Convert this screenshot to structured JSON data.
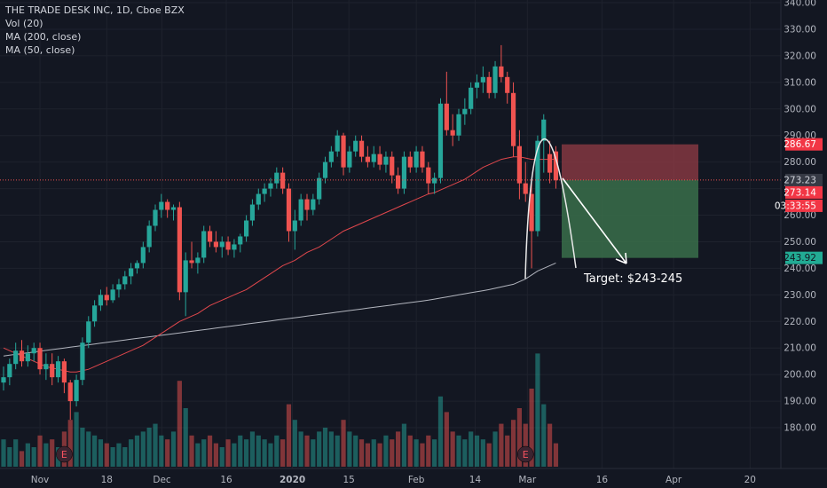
{
  "legend": {
    "symbol": "THE TRADE DESK INC, 1D, Cboe BZX",
    "vol": "Vol (20)",
    "ma200": "MA (200, close)",
    "ma50": "MA (50, close)"
  },
  "colors": {
    "background": "#131722",
    "grid": "#1e222d",
    "up": "#26a69a",
    "down": "#ef5350",
    "ma50": "#e0474c",
    "ma200": "#b2b5be",
    "stop_zone": "#8b3a44",
    "target_zone": "#3a6e4a",
    "current_price_line": "#ef5350"
  },
  "chart_data": {
    "type": "candlestick",
    "y_range": [
      173,
      340
    ],
    "y_ticks": [
      180,
      190,
      200,
      210,
      220,
      230,
      240,
      250,
      260,
      270,
      280,
      290,
      300,
      310,
      320,
      330,
      340
    ],
    "x_labels": [
      "Nov",
      "18",
      "Dec",
      "16",
      "2020",
      "15",
      "Feb",
      "14",
      "Mar",
      "16",
      "Apr",
      "20"
    ],
    "ohlc": [
      [
        197.0,
        203.0,
        194.0,
        199.0
      ],
      [
        199.0,
        206.0,
        196.0,
        204.0
      ],
      [
        204.0,
        212.0,
        202.0,
        209.0
      ],
      [
        209.0,
        213.0,
        203.0,
        205.0
      ],
      [
        205.0,
        211.0,
        203.0,
        208.0
      ],
      [
        208.0,
        212.0,
        205.0,
        210.0
      ],
      [
        210.0,
        212.0,
        200.0,
        202.0
      ],
      [
        202.0,
        208.0,
        198.0,
        204.0
      ],
      [
        204.0,
        208.0,
        196.0,
        199.0
      ],
      [
        199.0,
        207.0,
        197.0,
        205.0
      ],
      [
        205.0,
        206.0,
        193.0,
        197.0
      ],
      [
        197.0,
        198.0,
        183.0,
        190.0
      ],
      [
        190.0,
        200.0,
        188.0,
        198.0
      ],
      [
        198.0,
        214.0,
        196.0,
        212.0
      ],
      [
        212.0,
        222.0,
        210.0,
        220.0
      ],
      [
        220.0,
        228.0,
        218.0,
        226.0
      ],
      [
        226.0,
        232.0,
        224.0,
        230.0
      ],
      [
        230.0,
        233.0,
        226.0,
        228.0
      ],
      [
        228.0,
        234.0,
        227.0,
        232.0
      ],
      [
        232.0,
        236.0,
        229.0,
        234.0
      ],
      [
        234.0,
        239.0,
        232.0,
        237.0
      ],
      [
        237.0,
        242.0,
        234.0,
        240.0
      ],
      [
        240.0,
        243.0,
        238.0,
        242.0
      ],
      [
        242.0,
        250.0,
        240.0,
        248.0
      ],
      [
        248.0,
        258.0,
        246.0,
        256.0
      ],
      [
        256.0,
        264.0,
        254.0,
        262.0
      ],
      [
        262.0,
        268.0,
        259.0,
        265.0
      ],
      [
        265.0,
        266.0,
        259.0,
        262.0
      ],
      [
        262.0,
        264.0,
        258.0,
        263.0
      ],
      [
        263.0,
        265.0,
        228.0,
        231.0
      ],
      [
        231.0,
        246.0,
        222.0,
        243.0
      ],
      [
        243.0,
        250.0,
        240.0,
        242.0
      ],
      [
        242.0,
        246.0,
        238.0,
        244.0
      ],
      [
        244.0,
        256.0,
        242.0,
        254.0
      ],
      [
        254.0,
        256.0,
        248.0,
        250.0
      ],
      [
        250.0,
        254.0,
        246.0,
        248.0
      ],
      [
        248.0,
        252.0,
        244.0,
        250.0
      ],
      [
        250.0,
        252.0,
        245.0,
        247.0
      ],
      [
        247.0,
        251.0,
        244.0,
        249.0
      ],
      [
        249.0,
        253.0,
        246.0,
        252.0
      ],
      [
        252.0,
        260.0,
        250.0,
        258.0
      ],
      [
        258.0,
        266.0,
        256.0,
        264.0
      ],
      [
        264.0,
        270.0,
        262.0,
        268.0
      ],
      [
        268.0,
        272.0,
        265.0,
        270.0
      ],
      [
        270.0,
        274.0,
        267.0,
        272.0
      ],
      [
        272.0,
        278.0,
        270.0,
        276.0
      ],
      [
        276.0,
        278.0,
        268.0,
        270.0
      ],
      [
        270.0,
        272.0,
        250.0,
        254.0
      ],
      [
        254.0,
        262.0,
        247.0,
        258.0
      ],
      [
        258.0,
        268.0,
        256.0,
        266.0
      ],
      [
        266.0,
        268.0,
        258.0,
        262.0
      ],
      [
        262.0,
        268.0,
        260.0,
        266.0
      ],
      [
        266.0,
        276.0,
        264.0,
        274.0
      ],
      [
        274.0,
        282.0,
        272.0,
        280.0
      ],
      [
        280.0,
        286.0,
        278.0,
        284.0
      ],
      [
        284.0,
        292.0,
        282.0,
        290.0
      ],
      [
        290.0,
        291.0,
        275.0,
        278.0
      ],
      [
        278.0,
        286.0,
        276.0,
        284.0
      ],
      [
        284.0,
        290.0,
        282.0,
        288.0
      ],
      [
        288.0,
        290.0,
        280.0,
        282.0
      ],
      [
        282.0,
        286.0,
        278.0,
        280.0
      ],
      [
        280.0,
        286.0,
        278.0,
        283.0
      ],
      [
        283.0,
        286.0,
        277.0,
        279.0
      ],
      [
        279.0,
        284.0,
        276.0,
        282.0
      ],
      [
        282.0,
        284.0,
        272.0,
        275.0
      ],
      [
        275.0,
        278.0,
        268.0,
        270.0
      ],
      [
        270.0,
        284.0,
        268.0,
        282.0
      ],
      [
        282.0,
        284.0,
        276.0,
        278.0
      ],
      [
        278.0,
        286.0,
        276.0,
        284.0
      ],
      [
        284.0,
        286.0,
        276.0,
        278.0
      ],
      [
        278.0,
        280.0,
        268.0,
        272.0
      ],
      [
        272.0,
        276.0,
        268.0,
        274.0
      ],
      [
        274.0,
        304.0,
        272.0,
        302.0
      ],
      [
        302.0,
        314.0,
        290.0,
        292.0
      ],
      [
        292.0,
        298.0,
        286.0,
        290.0
      ],
      [
        290.0,
        300.0,
        288.0,
        298.0
      ],
      [
        298.0,
        304.0,
        294.0,
        300.0
      ],
      [
        300.0,
        310.0,
        298.0,
        308.0
      ],
      [
        308.0,
        313.0,
        304.0,
        310.0
      ],
      [
        310.0,
        316.0,
        306.0,
        312.0
      ],
      [
        312.0,
        314.0,
        304.0,
        306.0
      ],
      [
        306.0,
        318.0,
        304.0,
        316.0
      ],
      [
        316.0,
        324.0,
        310.0,
        312.0
      ],
      [
        312.0,
        314.0,
        302.0,
        306.0
      ],
      [
        306.0,
        310.0,
        282.0,
        286.0
      ],
      [
        286.0,
        292.0,
        266.0,
        272.0
      ],
      [
        272.0,
        280.0,
        265.0,
        268.0
      ],
      [
        268.0,
        272.0,
        240.0,
        254.0
      ],
      [
        254.0,
        290.0,
        252.0,
        288.0
      ],
      [
        288.0,
        298.0,
        276.0,
        296.0
      ],
      [
        283.0,
        288.0,
        272.0,
        276.0
      ],
      [
        284.0,
        286.0,
        270.0,
        273.14
      ]
    ],
    "volume": [
      7.0,
      5.0,
      7.0,
      4.0,
      6.0,
      5.0,
      8.0,
      6.0,
      7.0,
      5.0,
      9.0,
      12.0,
      14.0,
      10.0,
      9.0,
      8.0,
      7.0,
      6.0,
      5.0,
      6.0,
      5.0,
      7.0,
      8.0,
      9.0,
      10.0,
      11.0,
      8.0,
      7.0,
      9.0,
      22.0,
      15.0,
      8.0,
      6.0,
      7.0,
      8.0,
      6.0,
      5.0,
      7.0,
      6.0,
      8.0,
      7.0,
      9.0,
      8.0,
      7.0,
      6.0,
      8.0,
      7.0,
      16.0,
      12.0,
      9.0,
      8.0,
      7.0,
      9.0,
      10.0,
      9.0,
      8.0,
      12.0,
      9.0,
      8.0,
      7.0,
      6.0,
      7.0,
      6.0,
      8.0,
      7.0,
      9.0,
      11.0,
      8.0,
      7.0,
      6.0,
      8.0,
      7.0,
      18.0,
      14.0,
      9.0,
      8.0,
      7.0,
      9.0,
      8.0,
      7.0,
      6.0,
      9.0,
      11.0,
      8.0,
      12.0,
      15.0,
      11.0,
      20.0,
      29.0,
      16.0,
      11.0,
      6.0
    ],
    "ma50": [
      210.0,
      209.0,
      208.0,
      207.0,
      206.0,
      205.0,
      204.0,
      203.0,
      202.5,
      202.0,
      201.5,
      201.0,
      201.0,
      201.5,
      202.0,
      203.0,
      204.0,
      205.0,
      206.0,
      207.0,
      208.0,
      209.0,
      210.0,
      211.0,
      212.5,
      214.0,
      215.5,
      217.0,
      218.5,
      220.0,
      221.0,
      222.0,
      223.0,
      224.5,
      226.0,
      227.0,
      228.0,
      229.0,
      230.0,
      231.0,
      232.0,
      233.5,
      235.0,
      236.5,
      238.0,
      239.5,
      241.0,
      242.0,
      243.0,
      244.5,
      246.0,
      247.0,
      248.0,
      249.5,
      251.0,
      252.5,
      254.0,
      255.0,
      256.0,
      257.0,
      258.0,
      259.0,
      260.0,
      261.0,
      262.0,
      263.0,
      264.0,
      265.0,
      266.0,
      267.0,
      268.0,
      268.5,
      269.5,
      270.5,
      271.5,
      272.5,
      273.5,
      275.0,
      276.5,
      278.0,
      279.0,
      280.0,
      281.0,
      281.5,
      282.0,
      282.0,
      281.5,
      281.0,
      281.0,
      281.0,
      281.0,
      281.0
    ],
    "ma200": [
      207.0,
      207.3,
      207.6,
      207.9,
      208.2,
      208.5,
      208.8,
      209.1,
      209.4,
      209.7,
      210.0,
      210.3,
      210.6,
      210.9,
      211.2,
      211.5,
      211.8,
      212.1,
      212.4,
      212.7,
      213.0,
      213.3,
      213.6,
      213.9,
      214.2,
      214.5,
      214.8,
      215.1,
      215.4,
      215.7,
      216.0,
      216.3,
      216.6,
      216.9,
      217.2,
      217.5,
      217.8,
      218.1,
      218.4,
      218.7,
      219.0,
      219.3,
      219.6,
      219.9,
      220.2,
      220.5,
      220.8,
      221.1,
      221.4,
      221.7,
      222.0,
      222.3,
      222.6,
      222.9,
      223.2,
      223.5,
      223.8,
      224.1,
      224.4,
      224.7,
      225.0,
      225.3,
      225.6,
      225.9,
      226.2,
      226.5,
      226.8,
      227.1,
      227.4,
      227.7,
      228.0,
      228.4,
      228.8,
      229.2,
      229.6,
      230.0,
      230.4,
      230.8,
      231.2,
      231.6,
      232.0,
      232.5,
      233.0,
      233.5,
      234.0,
      235.0,
      236.0,
      237.5,
      239.0,
      240.0,
      241.0,
      242.0
    ],
    "earnings_markers": [
      "E",
      "E"
    ],
    "price_tags": {
      "stop": "286.67",
      "last": "273.23",
      "close": "273.14",
      "countdown": "03:33:55",
      "target": "243.92"
    },
    "position": {
      "entry": 273.23,
      "stop": 286.67,
      "target": 243.92
    },
    "annotation": "Target: $243-245"
  }
}
